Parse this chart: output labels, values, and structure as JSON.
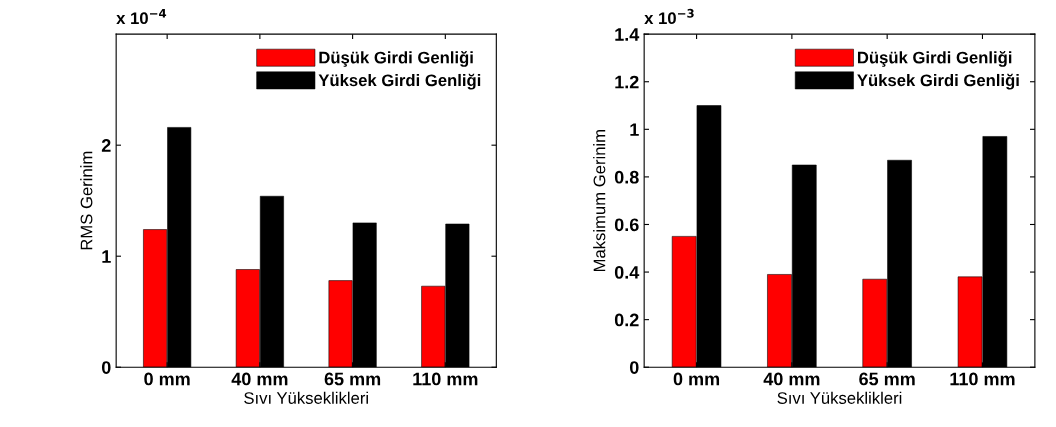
{
  "chart_data": [
    {
      "type": "bar",
      "xlabel": "Sıvı Yükseklikleri",
      "ylabel": "RMS Gerinim",
      "annotations": [
        "x 10$^{−4}$"
      ],
      "categories": [
        "0 mm",
        "40 mm",
        "65 mm",
        "110 mm"
      ],
      "series": [
        {
          "name": "Düşük Girdi Genliği",
          "color": "#ff0000",
          "values": [
            1.24,
            0.88,
            0.78,
            0.73
          ]
        },
        {
          "name": "Yüksek Girdi Genliği",
          "color": "#000000",
          "values": [
            2.16,
            1.54,
            1.3,
            1.29
          ]
        }
      ],
      "ylim": [
        0,
        3
      ],
      "yticks": [
        0,
        1,
        2
      ],
      "legend": "top right",
      "grid": false
    },
    {
      "type": "bar",
      "xlabel": "Sıvı Yükseklikleri",
      "ylabel": "Maksimum Gerinim",
      "annotations": [
        "x 10$^{−3}$"
      ],
      "categories": [
        "0 mm",
        "40 mm",
        "65 mm",
        "110 mm"
      ],
      "series": [
        {
          "name": "Düşük Girdi Genliği",
          "color": "#ff0000",
          "values": [
            0.55,
            0.39,
            0.37,
            0.38
          ]
        },
        {
          "name": "Yüksek Girdi Genliği",
          "color": "#000000",
          "values": [
            1.1,
            0.85,
            0.87,
            0.97
          ]
        }
      ],
      "ylim": [
        0,
        1.4
      ],
      "yticks": [
        0,
        0.2,
        0.4,
        0.6,
        0.8,
        1,
        1.2,
        1.4
      ],
      "legend": "top right",
      "grid": false
    }
  ]
}
